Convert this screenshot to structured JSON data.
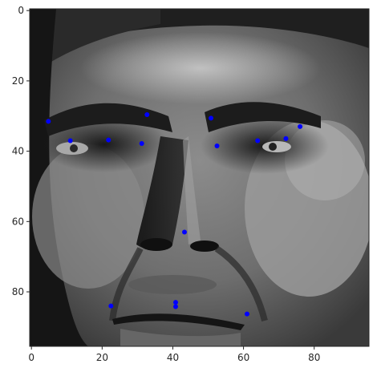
{
  "chart_data": {
    "type": "scatter",
    "title": "",
    "xlabel": "",
    "ylabel": "",
    "xlim": [
      -0.5,
      95.5
    ],
    "ylim": [
      95.5,
      -0.5
    ],
    "y_inverted": true,
    "x_ticks": [
      0,
      20,
      40,
      60,
      80
    ],
    "y_ticks": [
      0,
      20,
      40,
      60,
      80
    ],
    "x_tick_labels": [
      "0",
      "20",
      "40",
      "60",
      "80"
    ],
    "y_tick_labels": [
      "0",
      "20",
      "40",
      "60",
      "80"
    ],
    "grid": false,
    "legend": "none",
    "background_image": "grayscale face photograph (96x96 pixels)",
    "marker_color": "#0000ff",
    "points": [
      {
        "x": 4.8,
        "y": 31.5
      },
      {
        "x": 11.0,
        "y": 37.0
      },
      {
        "x": 21.8,
        "y": 36.8
      },
      {
        "x": 31.2,
        "y": 37.8
      },
      {
        "x": 32.7,
        "y": 29.6
      },
      {
        "x": 50.8,
        "y": 30.6
      },
      {
        "x": 52.5,
        "y": 38.5
      },
      {
        "x": 64.0,
        "y": 37.0
      },
      {
        "x": 72.0,
        "y": 36.4
      },
      {
        "x": 76.0,
        "y": 33.0
      },
      {
        "x": 43.3,
        "y": 63.0
      },
      {
        "x": 22.5,
        "y": 84.0
      },
      {
        "x": 40.8,
        "y": 83.0
      },
      {
        "x": 40.8,
        "y": 84.2
      },
      {
        "x": 61.0,
        "y": 86.3
      }
    ]
  }
}
